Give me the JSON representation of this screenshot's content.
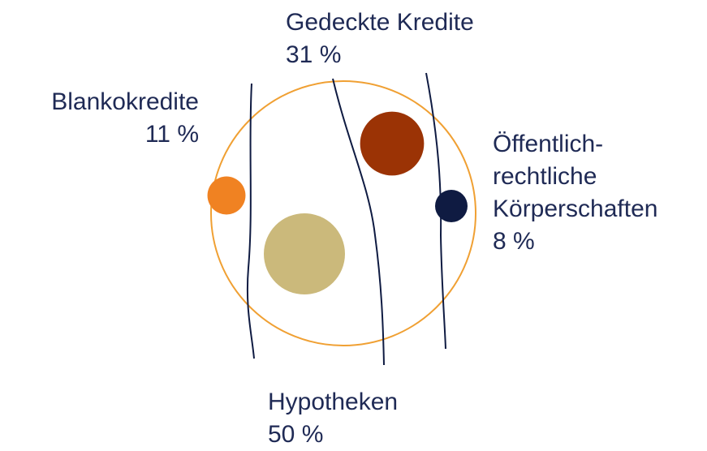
{
  "chart_data": {
    "type": "bubble",
    "categories": [
      "Blankokredite",
      "Gedeckte Kredite",
      "Hypotheken",
      "Öffentlich-rechtliche Körperschaften"
    ],
    "values": [
      11,
      31,
      50,
      8
    ],
    "value_labels": [
      "11 %",
      "31 %",
      "50 %",
      "8 %"
    ],
    "colors": [
      "#f08222",
      "#9b3305",
      "#cbb97b",
      "#0f1b42"
    ]
  }
}
